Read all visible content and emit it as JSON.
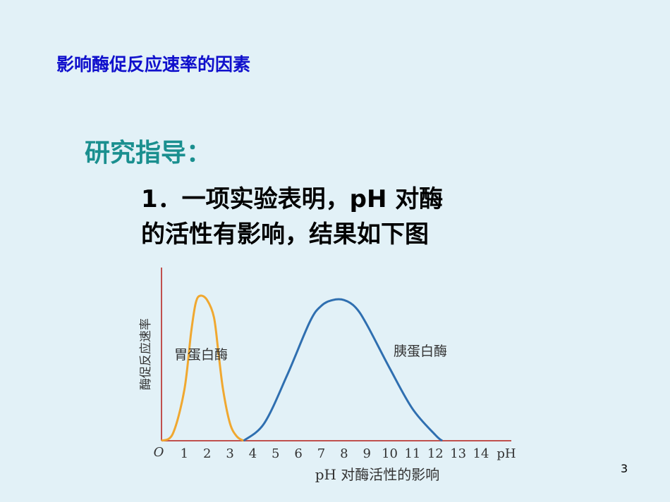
{
  "slide": {
    "title": "影响酶促反应速率的因素",
    "subtitle": "研究指导：",
    "body_line1": "1．一项实验表明，pH 对酶",
    "body_line2": "的活性有影响，结果如下图",
    "slide_number": "3"
  },
  "colors": {
    "background": "#e2f1f7",
    "title": "#1010cc",
    "subtitle": "#1a8f8f",
    "axis": "#c0504d",
    "pepsin": "#f0a830",
    "trypsin": "#2f6fb0"
  },
  "chart_data": {
    "type": "line",
    "title": "pH 对酶活性的影响",
    "xlabel": "pH",
    "ylabel": "酶促反应速率",
    "origin_label": "O",
    "x_ticks": [
      "1",
      "2",
      "3",
      "4",
      "5",
      "6",
      "7",
      "8",
      "9",
      "10",
      "11",
      "12",
      "13",
      "14"
    ],
    "xlim": [
      0,
      14.6
    ],
    "ylim": [
      0,
      1.1
    ],
    "grid": false,
    "legend": "none",
    "series": [
      {
        "name": "胃蛋白酶",
        "color": "#f0a830",
        "x": [
          0,
          0.5,
          1.0,
          1.3,
          1.5,
          1.7,
          2.0,
          2.3,
          2.5,
          2.7,
          3.0,
          3.3,
          3.6
        ],
        "y": [
          0,
          0.05,
          0.35,
          0.75,
          0.95,
          1.0,
          0.97,
          0.85,
          0.6,
          0.35,
          0.12,
          0.03,
          0
        ]
      },
      {
        "name": "胰蛋白酶",
        "color": "#2f6fb0",
        "x": [
          3.6,
          4.5,
          5.5,
          6.5,
          7.0,
          7.5,
          8.0,
          8.5,
          9.0,
          10.0,
          11.0,
          12.0,
          12.3
        ],
        "y": [
          0,
          0.12,
          0.45,
          0.82,
          0.93,
          0.97,
          0.97,
          0.92,
          0.8,
          0.5,
          0.22,
          0.04,
          0
        ]
      }
    ]
  }
}
